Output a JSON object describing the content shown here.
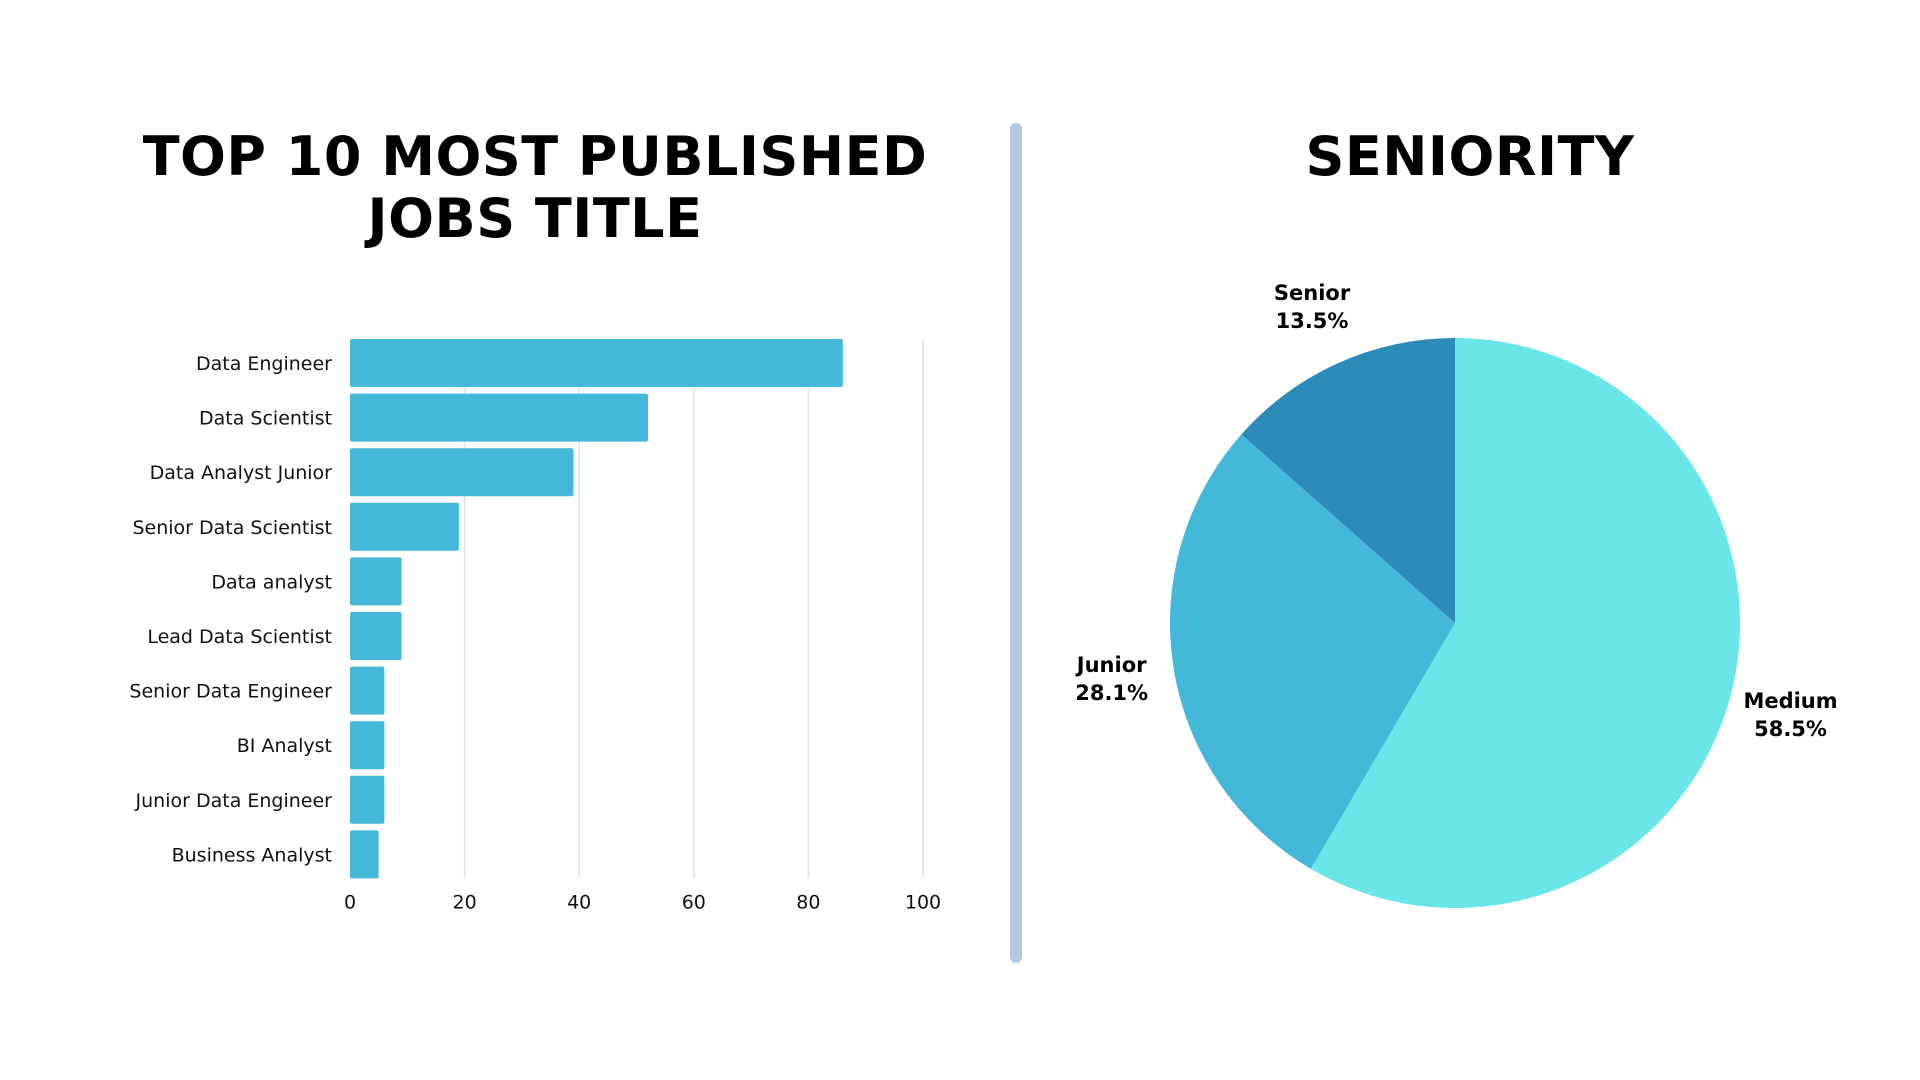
{
  "chart_data": [
    {
      "type": "bar",
      "orientation": "horizontal",
      "title": "TOP 10 MOST PUBLISHED JOBS TITLE",
      "categories": [
        "Data Engineer",
        "Data Scientist",
        "Data Analyst Junior",
        "Senior Data Scientist",
        "Data analyst",
        "Lead Data Scientist",
        "Senior Data Engineer",
        "BI Analyst",
        "Junior Data Engineer",
        "Business Analyst"
      ],
      "values": [
        86,
        52,
        39,
        19,
        9,
        9,
        6,
        6,
        6,
        5
      ],
      "xlim": [
        0,
        100
      ],
      "xticks": [
        "0",
        "20",
        "40",
        "60",
        "80",
        "100"
      ],
      "grid": "vertical",
      "color": "#43b8d8"
    },
    {
      "type": "pie",
      "title": "SENIORITY",
      "slices": [
        {
          "label": "Medium",
          "value": 58.5,
          "display": "58.5%",
          "color": "#6ae5e8"
        },
        {
          "label": "Junior",
          "value": 28.1,
          "display": "28.1%",
          "color": "#43b8d8"
        },
        {
          "label": "Senior",
          "value": 13.5,
          "display": "13.5%",
          "color": "#2d8bba"
        }
      ]
    }
  ]
}
